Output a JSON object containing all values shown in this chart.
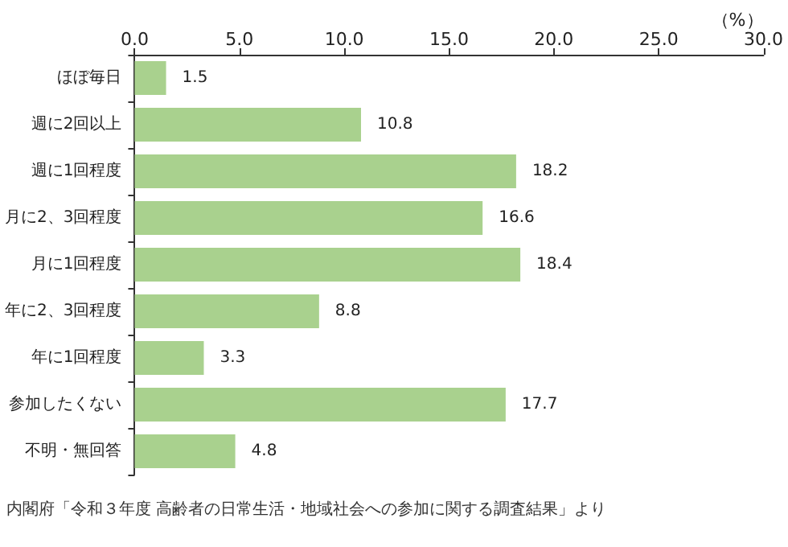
{
  "chart_data": {
    "type": "bar",
    "orientation": "horizontal",
    "categories": [
      "ほぼ毎日",
      "週に2回以上",
      "週に1回程度",
      "月に2、3回程度",
      "月に1回程度",
      "年に2、3回程度",
      "年に1回程度",
      "参加したくない",
      "不明・無回答"
    ],
    "values": [
      1.5,
      10.8,
      18.2,
      16.6,
      18.4,
      8.8,
      3.3,
      17.7,
      4.8
    ],
    "color": "#a9d18e",
    "xlabel": "（%）",
    "xlim": [
      0,
      30
    ],
    "xticks": [
      {
        "value": 0,
        "label": "0.0"
      },
      {
        "value": 5,
        "label": "5.0"
      },
      {
        "value": 10,
        "label": "10.0"
      },
      {
        "value": 15,
        "label": "15.0"
      },
      {
        "value": 20,
        "label": "20.0"
      },
      {
        "value": 25,
        "label": "25.0"
      },
      {
        "value": 30,
        "label": "30.0"
      }
    ],
    "data_labels": true,
    "grid": false,
    "annotations": [
      "内閣府「令和３年度 高齢者の日常生活・地域社会への参加に関する調査結果」より"
    ]
  }
}
